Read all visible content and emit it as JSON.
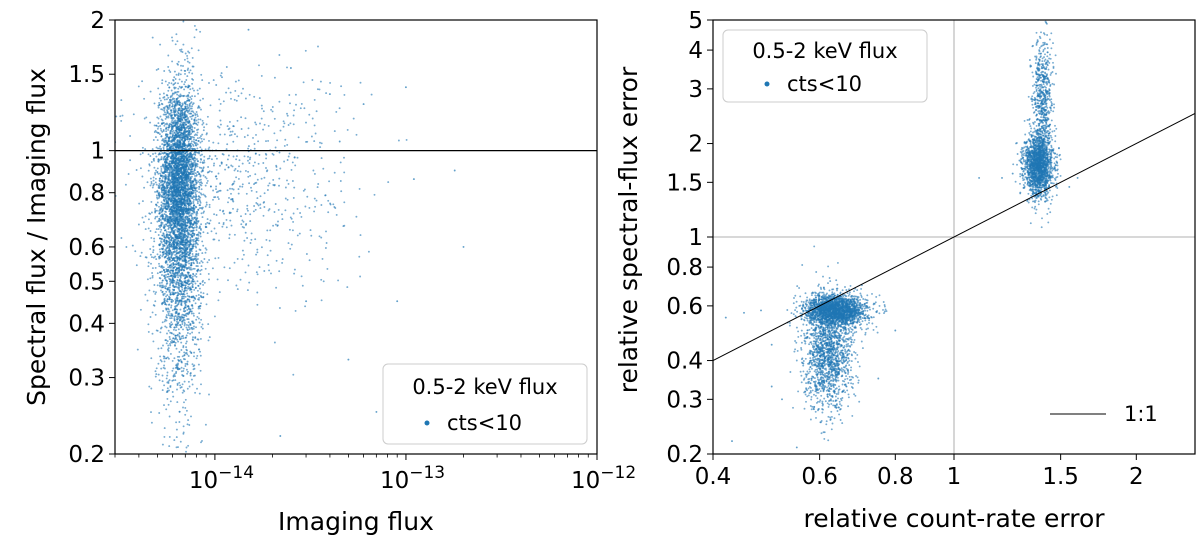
{
  "chart_data": [
    {
      "type": "scatter",
      "xscale": "log",
      "yscale": "log",
      "xlim": [
        3e-15,
        1e-12
      ],
      "ylim": [
        0.2,
        2
      ],
      "xlabel": "Imaging flux",
      "ylabel": "Spectral flux / Imaging flux",
      "x_ticks": [
        {
          "value": 1e-14,
          "base": "10",
          "exp": "−14"
        },
        {
          "value": 1e-13,
          "base": "10",
          "exp": "−13"
        },
        {
          "value": 1e-12,
          "base": "10",
          "exp": "−12"
        }
      ],
      "y_ticks": [
        {
          "value": 0.2,
          "label": "0.2"
        },
        {
          "value": 0.3,
          "label": "0.3"
        },
        {
          "value": 0.4,
          "label": "0.4"
        },
        {
          "value": 0.5,
          "label": "0.5"
        },
        {
          "value": 0.6,
          "label": "0.6"
        },
        {
          "value": 0.8,
          "label": "0.8"
        },
        {
          "value": 1,
          "label": "1"
        },
        {
          "value": 1.5,
          "label": "1.5"
        },
        {
          "value": 2,
          "label": "2"
        }
      ],
      "reference_line": {
        "y": 1
      },
      "legend": {
        "title": "0.5-2 keV flux",
        "label": "cts<10",
        "location": "lower-right"
      },
      "series": [
        {
          "name": "cts<10",
          "color": "#1f77b4",
          "clusters": [
            {
              "n": 2600,
              "x_center": 6.5e-15,
              "x_sigma_dex": 0.05,
              "y_center": 0.88,
              "y_sigma_dex": 0.1
            },
            {
              "n": 2600,
              "x_center": 6.5e-15,
              "x_sigma_dex": 0.06,
              "y_center": 0.62,
              "y_sigma_dex": 0.17
            },
            {
              "n": 700,
              "x_center": 1.3e-14,
              "x_sigma_dex": 0.3,
              "y_center": 0.85,
              "y_sigma_dex": 0.13
            }
          ],
          "outliers": [
            [
              2.5e-14,
              1.55
            ],
            [
              4e-14,
              1.35
            ],
            [
              6e-14,
              1.28
            ],
            [
              1.8e-13,
              0.9
            ],
            [
              7e-14,
              0.25
            ],
            [
              1e-13,
              1.4
            ],
            [
              3e-14,
              0.45
            ],
            [
              5e-14,
              0.33
            ],
            [
              2e-13,
              0.6
            ],
            [
              1.5e-14,
              1.9
            ],
            [
              8e-15,
              1.9
            ],
            [
              2.2e-14,
              0.22
            ],
            [
              9e-14,
              0.45
            ],
            [
              4.5e-14,
              1.05
            ],
            [
              1.1e-13,
              0.86
            ]
          ]
        }
      ]
    },
    {
      "type": "scatter",
      "xscale": "log",
      "yscale": "log",
      "xlim": [
        0.4,
        2.5
      ],
      "ylim": [
        0.2,
        5
      ],
      "xlabel": "relative count-rate error",
      "ylabel": "relative spectral-flux error",
      "x_ticks": [
        {
          "value": 0.4,
          "label": "0.4"
        },
        {
          "value": 0.6,
          "label": "0.6"
        },
        {
          "value": 0.8,
          "label": "0.8"
        },
        {
          "value": 1,
          "label": "1"
        },
        {
          "value": 1.5,
          "label": "1.5"
        },
        {
          "value": 2,
          "label": "2"
        }
      ],
      "y_ticks": [
        {
          "value": 0.2,
          "label": "0.2"
        },
        {
          "value": 0.3,
          "label": "0.3"
        },
        {
          "value": 0.4,
          "label": "0.4"
        },
        {
          "value": 0.6,
          "label": "0.6"
        },
        {
          "value": 0.8,
          "label": "0.8"
        },
        {
          "value": 1,
          "label": "1"
        },
        {
          "value": 1.5,
          "label": "1.5"
        },
        {
          "value": 2,
          "label": "2"
        },
        {
          "value": 3,
          "label": "3"
        },
        {
          "value": 4,
          "label": "4"
        },
        {
          "value": 5,
          "label": "5"
        }
      ],
      "reference_lines": {
        "x": 1,
        "y": 1
      },
      "one_to_one_line": {
        "label": "1:1"
      },
      "legend": {
        "title": "0.5-2 keV flux",
        "label": "cts<10",
        "location": "upper-left"
      },
      "legend2": {
        "label": "1:1",
        "location": "lower-right"
      },
      "series": [
        {
          "name": "cts<10",
          "color": "#1f77b4",
          "clusters": [
            {
              "n": 2000,
              "x_center": 0.64,
              "x_sigma_dex": 0.025,
              "y_center": 0.58,
              "y_sigma_dex": 0.025
            },
            {
              "n": 1500,
              "x_center": 0.62,
              "x_sigma_dex": 0.02,
              "y_center": 0.42,
              "y_sigma_dex": 0.09
            },
            {
              "n": 1700,
              "x_center": 1.38,
              "x_sigma_dex": 0.012,
              "y_center": 1.7,
              "y_sigma_dex": 0.05
            },
            {
              "n": 600,
              "x_center": 1.4,
              "x_sigma_dex": 0.008,
              "y_center": 2.8,
              "y_sigma_dex": 0.1
            }
          ],
          "outliers": [
            [
              0.42,
              0.55
            ],
            [
              0.45,
              0.57
            ],
            [
              0.48,
              0.58
            ],
            [
              0.5,
              0.45
            ],
            [
              0.52,
              0.3
            ],
            [
              0.43,
              0.22
            ],
            [
              0.5,
              0.33
            ],
            [
              0.55,
              0.21
            ],
            [
              1.2,
              1.55
            ],
            [
              1.25,
              1.6
            ],
            [
              1.6,
              1.55
            ],
            [
              1.55,
              1.45
            ],
            [
              1.42,
              4.9
            ],
            [
              0.8,
              0.5
            ],
            [
              0.75,
              0.35
            ],
            [
              1.1,
              1.55
            ]
          ]
        }
      ]
    }
  ]
}
